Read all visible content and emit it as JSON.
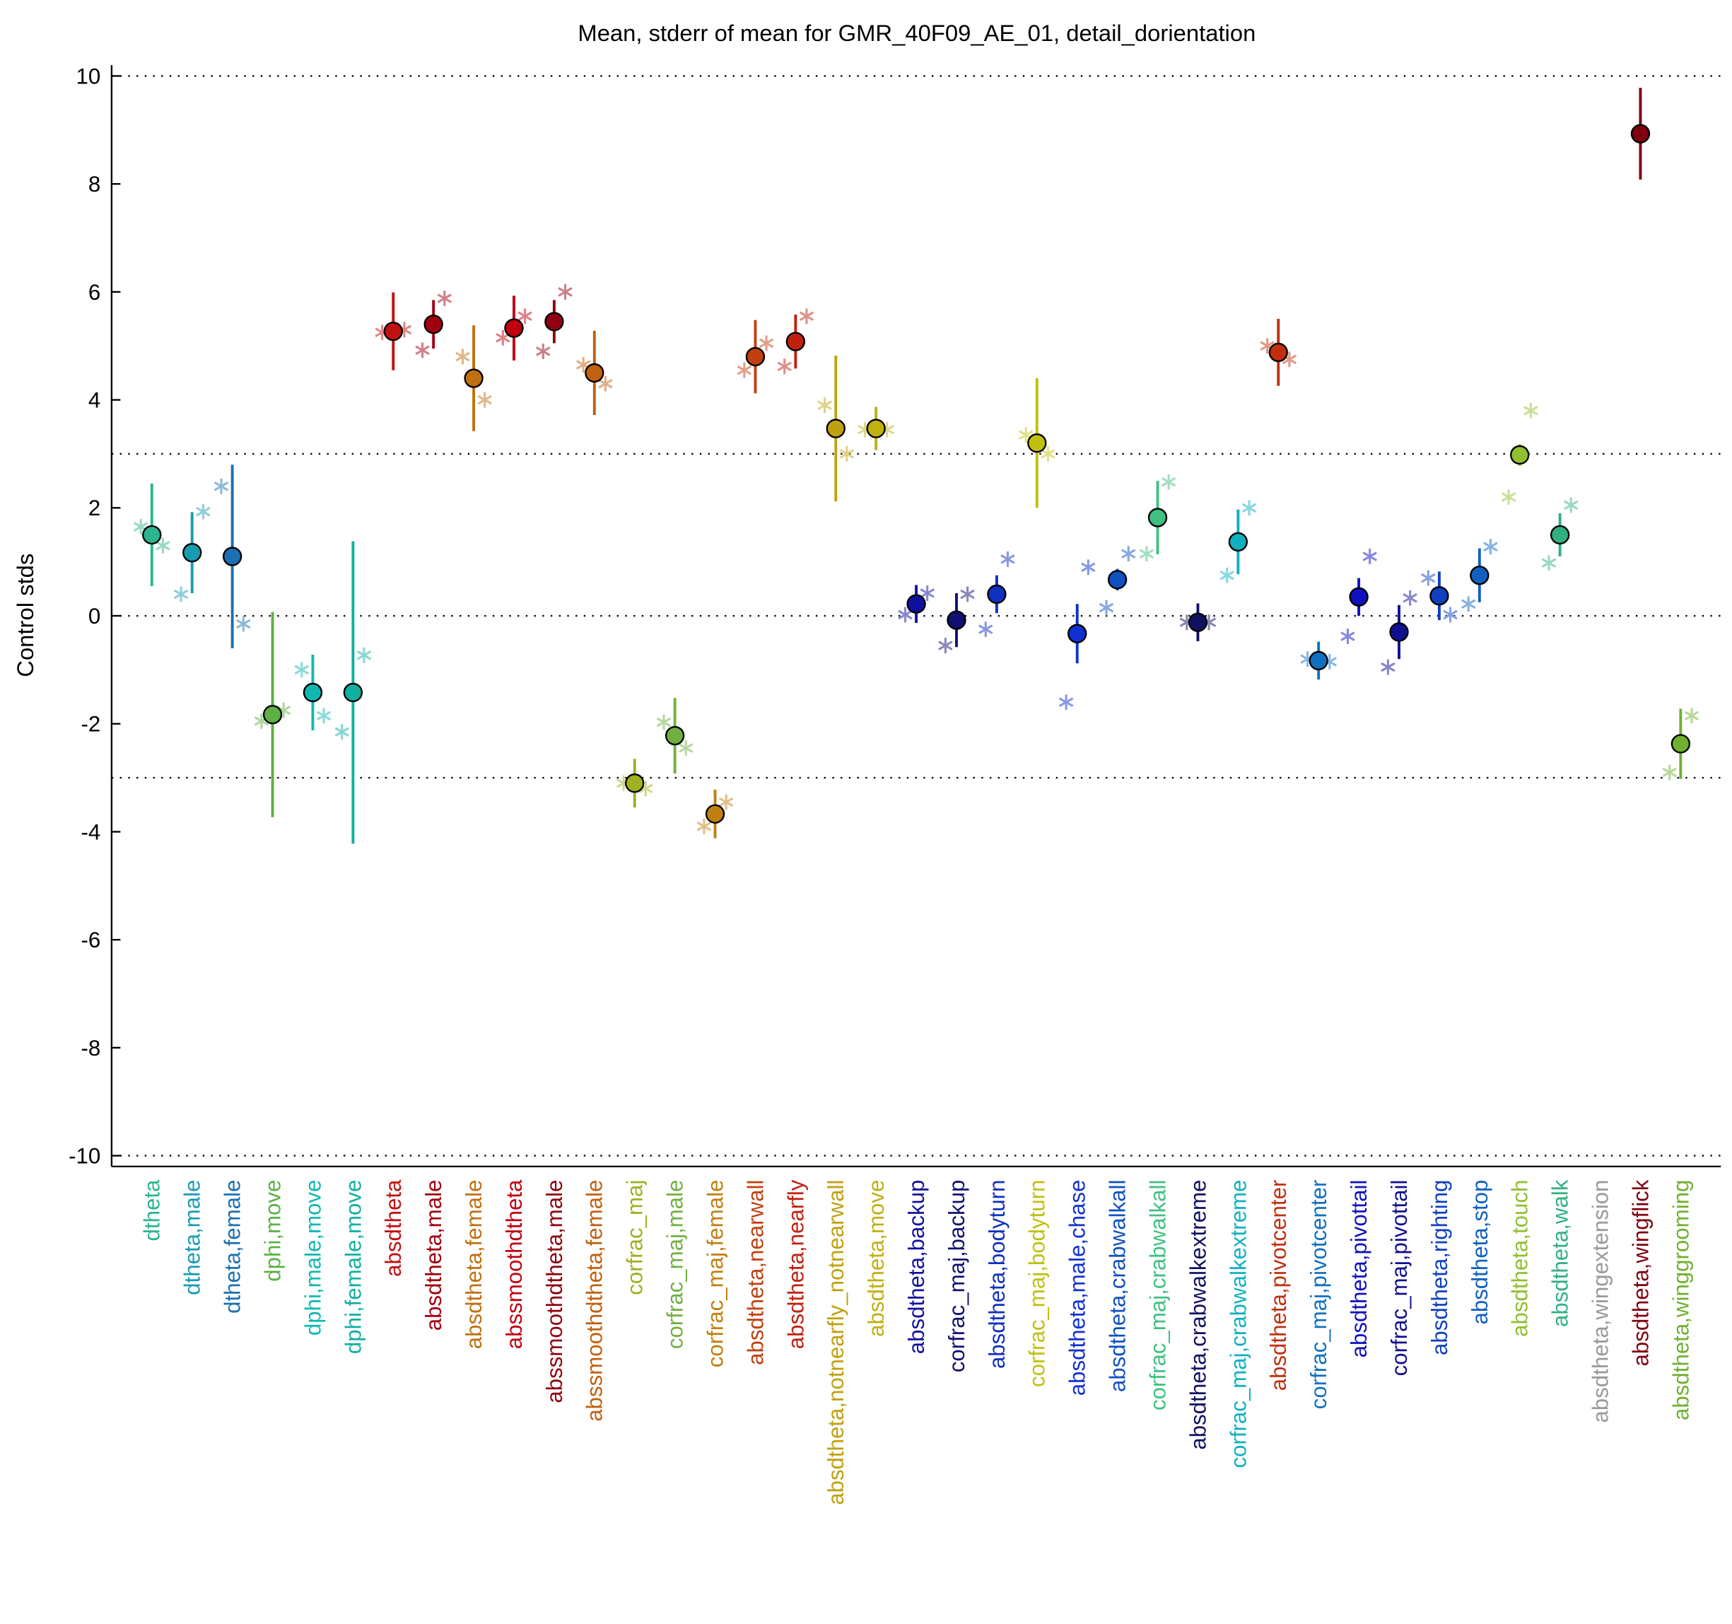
{
  "chart_data": {
    "type": "errorbar",
    "title": "Mean, stderr of mean for GMR_40F09_AE_01, detail_dorientation",
    "ylabel": "Control stds",
    "categories": [
      "dtheta",
      "dtheta,male",
      "dtheta,female",
      "dphi,move",
      "dphi,male,move",
      "dphi,female,move",
      "absdtheta",
      "absdtheta,male",
      "absdtheta,female",
      "abssmoothdtheta",
      "abssmoothdtheta,male",
      "abssmoothdtheta,female",
      "corfrac_maj",
      "corfrac_maj,male",
      "corfrac_maj,female",
      "absdtheta,nearwall",
      "absdtheta,nearfly",
      "absdtheta,notnearfly_notnearwall",
      "absdtheta,move",
      "absdtheta,backup",
      "corfrac_maj,backup",
      "absdtheta,bodyturn",
      "corfrac_maj,bodyturn",
      "absdtheta,male,chase",
      "absdtheta,crabwalkall",
      "corfrac_maj,crabwalkall",
      "absdtheta,crabwalkextreme",
      "corfrac_maj,crabwalkextreme",
      "absdtheta,pivotcenter",
      "corfrac_maj,pivotcenter",
      "absdtheta,pivottail",
      "corfrac_maj,pivottail",
      "absdtheta,righting",
      "absdtheta,stop",
      "absdtheta,touch",
      "absdtheta,walk",
      "absdtheta,wingextension",
      "absdtheta,wingflick",
      "absdtheta,winggrooming"
    ],
    "values": [
      1.5,
      1.17,
      1.1,
      -1.83,
      -1.42,
      -1.42,
      5.27,
      5.4,
      4.4,
      5.33,
      5.45,
      4.5,
      -3.1,
      -2.22,
      -3.67,
      4.8,
      5.08,
      3.47,
      3.47,
      0.22,
      -0.08,
      0.4,
      3.2,
      -0.33,
      0.67,
      1.82,
      -0.12,
      1.37,
      4.88,
      -0.83,
      0.35,
      -0.3,
      0.37,
      0.75,
      2.98,
      1.5,
      null,
      8.93,
      -2.37
    ],
    "errors": [
      0.95,
      0.75,
      1.7,
      1.9,
      0.7,
      2.8,
      0.72,
      0.45,
      0.98,
      0.6,
      0.4,
      0.78,
      0.45,
      0.7,
      0.45,
      0.68,
      0.5,
      1.35,
      0.4,
      0.35,
      0.5,
      0.35,
      1.2,
      0.55,
      0.2,
      0.68,
      0.35,
      0.6,
      0.62,
      0.35,
      0.35,
      0.5,
      0.45,
      0.5,
      0.2,
      0.4,
      null,
      0.85,
      0.65
    ],
    "star_left": [
      1.65,
      0.4,
      2.4,
      -1.95,
      -1.0,
      -2.15,
      5.25,
      4.92,
      4.8,
      5.15,
      4.9,
      4.65,
      -3.1,
      -1.97,
      -3.9,
      4.55,
      4.62,
      3.9,
      3.45,
      0.02,
      -0.55,
      -0.25,
      3.35,
      -1.6,
      0.15,
      1.15,
      -0.12,
      0.75,
      5.0,
      -0.8,
      -0.38,
      -0.95,
      0.7,
      0.22,
      2.2,
      0.98,
      null,
      null,
      -2.9
    ],
    "star_right": [
      1.3,
      1.93,
      -0.15,
      -1.75,
      -1.85,
      -0.73,
      5.3,
      5.88,
      4.0,
      5.55,
      6.0,
      4.3,
      -3.2,
      -2.45,
      -3.45,
      5.05,
      5.55,
      3.0,
      3.45,
      0.42,
      0.4,
      1.05,
      3.0,
      0.9,
      1.15,
      2.48,
      -0.12,
      2.0,
      4.75,
      -0.85,
      1.1,
      0.33,
      0.02,
      1.28,
      3.8,
      2.05,
      null,
      null,
      -1.85
    ],
    "colors": [
      "#2bb58f",
      "#1a9cb0",
      "#1a70b0",
      "#5cb045",
      "#10b8b0",
      "#10b0a0",
      "#c01010",
      "#a00010",
      "#c07010",
      "#c00010",
      "#900010",
      "#c06010",
      "#a0b020",
      "#70b040",
      "#c08010",
      "#c04010",
      "#c02010",
      "#c0a010",
      "#c0b010",
      "#1010a0",
      "#101070",
      "#1030c0",
      "#c0c010",
      "#1030d0",
      "#1050c0",
      "#40c080",
      "#101060",
      "#10b0c0",
      "#c03010",
      "#1070c0",
      "#1010c0",
      "#101090",
      "#1040c0",
      "#1060c0",
      "#90c030",
      "#30b080",
      "#999999",
      "#800010",
      "#70b030"
    ],
    "ylim": [
      -10.2,
      10.2
    ],
    "yticks": [
      -10,
      -8,
      -6,
      -4,
      -2,
      0,
      2,
      4,
      6,
      8,
      10
    ],
    "ref_lines": [
      10,
      3,
      0,
      -3,
      -10
    ]
  }
}
